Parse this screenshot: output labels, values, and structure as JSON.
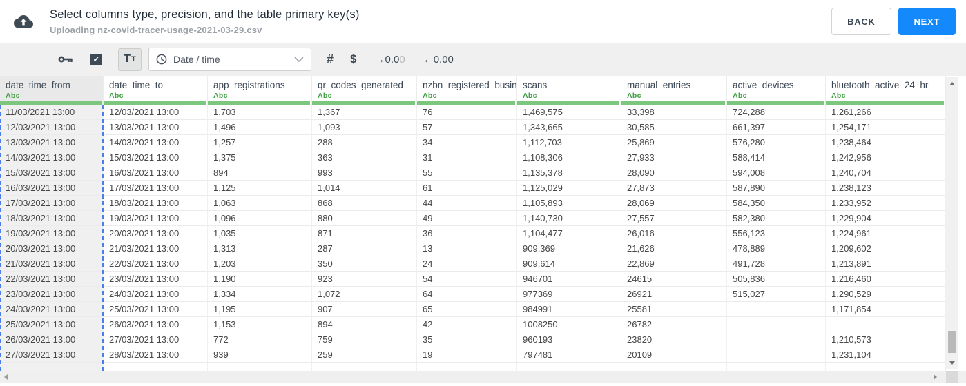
{
  "header": {
    "title": "Select columns type, precision, and the table primary key(s)",
    "subtitle": "Uploading nz-covid-tracer-usage-2021-03-29.csv",
    "back_label": "BACK",
    "next_label": "NEXT"
  },
  "toolbar": {
    "checkbox_checked": true,
    "check_glyph": "✓",
    "text_type_button": {
      "big": "T",
      "small": "T"
    },
    "type_dropdown": {
      "value": "Date / time"
    },
    "number_type_label": "#",
    "currency_type_label": "$",
    "increase_decimal": {
      "arrow": "→",
      "digits": "0.0",
      "faded_digit": "0"
    },
    "decrease_decimal": {
      "arrow": "←",
      "digits": "0.00"
    }
  },
  "table": {
    "columns": [
      {
        "name": "date_time_from",
        "type": "Abc",
        "selected": true
      },
      {
        "name": "date_time_to",
        "type": "Abc",
        "selected": false
      },
      {
        "name": "app_registrations",
        "type": "Abc",
        "selected": false
      },
      {
        "name": "qr_codes_generated",
        "type": "Abc",
        "selected": false
      },
      {
        "name": "nzbn_registered_busine",
        "type": "Abc",
        "selected": false
      },
      {
        "name": "scans",
        "type": "Abc",
        "selected": false
      },
      {
        "name": "manual_entries",
        "type": "Abc",
        "selected": false
      },
      {
        "name": "active_devices",
        "type": "Abc",
        "selected": false
      },
      {
        "name": "bluetooth_active_24_hr_",
        "type": "Abc",
        "selected": false
      }
    ],
    "rows": [
      [
        "11/03/2021 13:00",
        "12/03/2021 13:00",
        "1,703",
        "1,367",
        "76",
        "1,469,575",
        "33,398",
        "724,288",
        "1,261,266"
      ],
      [
        "12/03/2021 13:00",
        "13/03/2021 13:00",
        "1,496",
        "1,093",
        "57",
        "1,343,665",
        "30,585",
        "661,397",
        "1,254,171"
      ],
      [
        "13/03/2021 13:00",
        "14/03/2021 13:00",
        "1,257",
        "288",
        "34",
        "1,112,703",
        "25,869",
        "576,280",
        "1,238,464"
      ],
      [
        "14/03/2021 13:00",
        "15/03/2021 13:00",
        "1,375",
        "363",
        "31",
        "1,108,306",
        "27,933",
        "588,414",
        "1,242,956"
      ],
      [
        "15/03/2021 13:00",
        "16/03/2021 13:00",
        "894",
        "993",
        "55",
        "1,135,378",
        "28,090",
        "594,008",
        "1,240,704"
      ],
      [
        "16/03/2021 13:00",
        "17/03/2021 13:00",
        "1,125",
        "1,014",
        "61",
        "1,125,029",
        "27,873",
        "587,890",
        "1,238,123"
      ],
      [
        "17/03/2021 13:00",
        "18/03/2021 13:00",
        "1,063",
        "868",
        "44",
        "1,105,893",
        "28,069",
        "584,350",
        "1,233,952"
      ],
      [
        "18/03/2021 13:00",
        "19/03/2021 13:00",
        "1,096",
        "880",
        "49",
        "1,140,730",
        "27,557",
        "582,380",
        "1,229,904"
      ],
      [
        "19/03/2021 13:00",
        "20/03/2021 13:00",
        "1,035",
        "871",
        "36",
        "1,104,477",
        "26,016",
        "556,123",
        "1,224,961"
      ],
      [
        "20/03/2021 13:00",
        "21/03/2021 13:00",
        "1,313",
        "287",
        "13",
        "909,369",
        "21,626",
        "478,889",
        "1,209,602"
      ],
      [
        "21/03/2021 13:00",
        "22/03/2021 13:00",
        "1,203",
        "350",
        "24",
        "909,614",
        "22,869",
        "491,728",
        "1,213,891"
      ],
      [
        "22/03/2021 13:00",
        "23/03/2021 13:00",
        "1,190",
        "923",
        "54",
        "946701",
        "24615",
        "505,836",
        "1,216,460"
      ],
      [
        "23/03/2021 13:00",
        "24/03/2021 13:00",
        "1,334",
        "1,072",
        "64",
        "977369",
        "26921",
        "515,027",
        "1,290,529"
      ],
      [
        "24/03/2021 13:00",
        "25/03/2021 13:00",
        "1,195",
        "907",
        "65",
        "984991",
        "25581",
        "",
        "1,171,854"
      ],
      [
        "25/03/2021 13:00",
        "26/03/2021 13:00",
        "1,153",
        "894",
        "42",
        "1008250",
        "26782",
        "",
        ""
      ],
      [
        "26/03/2021 13:00",
        "27/03/2021 13:00",
        "772",
        "759",
        "35",
        "960193",
        "23820",
        "",
        "1,210,573"
      ],
      [
        "27/03/2021 13:00",
        "28/03/2021 13:00",
        "939",
        "259",
        "19",
        "797481",
        "20109",
        "",
        "1,231,104"
      ]
    ]
  },
  "colors": {
    "accent_blue": "#1389fb",
    "type_green": "#3fa142",
    "column_bar_green": "#7cc67d",
    "selection_blue": "#4a7fe9",
    "dark_slate": "#3e4a54"
  }
}
